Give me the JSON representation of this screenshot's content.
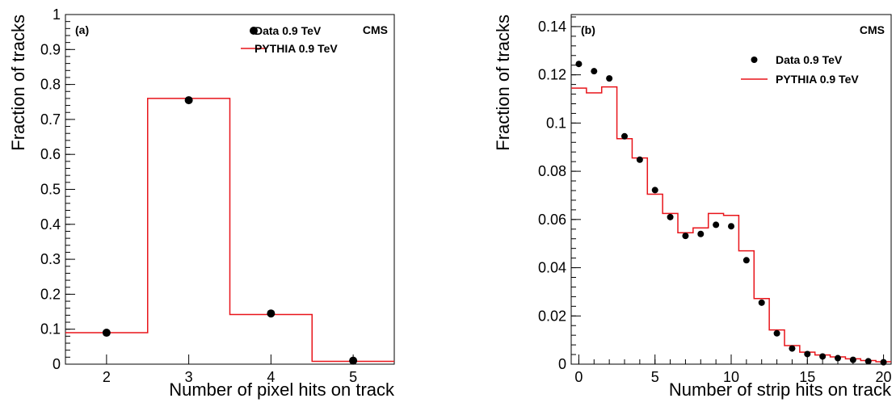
{
  "colors": {
    "data": "#000000",
    "mc": "#e8141a",
    "frame": "#000000"
  },
  "chart_data": [
    {
      "type": "step+scatter",
      "panel_label": "(a)",
      "experiment_label": "CMS",
      "xlabel": "Number of pixel hits on track",
      "ylabel": "Fraction of tracks",
      "xlim": [
        1.5,
        5.5
      ],
      "ylim": [
        0,
        1
      ],
      "xticks": [
        2,
        3,
        4,
        5
      ],
      "xtick_labels": [
        "2",
        "3",
        "4",
        "5"
      ],
      "yticks": [
        0,
        0.1,
        0.2,
        0.3,
        0.4,
        0.5,
        0.6,
        0.7,
        0.8,
        0.9,
        1
      ],
      "ytick_labels": [
        "0",
        "0.1",
        "0.2",
        "0.3",
        "0.4",
        "0.5",
        "0.6",
        "0.7",
        "0.8",
        "0.9",
        "1"
      ],
      "legend_position": "top-right",
      "series": [
        {
          "name": "Data 0.9 TeV",
          "kind": "markers",
          "x": [
            2,
            3,
            4,
            5
          ],
          "y": [
            0.09,
            0.755,
            0.145,
            0.01
          ]
        },
        {
          "name": "PYTHIA 0.9 TeV",
          "kind": "step",
          "x": [
            2,
            3,
            4,
            5
          ],
          "y": [
            0.09,
            0.76,
            0.142,
            0.008
          ]
        }
      ]
    },
    {
      "type": "step+scatter",
      "panel_label": "(b)",
      "experiment_label": "CMS",
      "xlabel": "Number of strip hits on track",
      "ylabel": "Fraction of tracks",
      "xlim": [
        -0.5,
        20.5
      ],
      "ylim": [
        0,
        0.145
      ],
      "xticks": [
        0,
        5,
        10,
        15,
        20
      ],
      "xtick_labels": [
        "0",
        "5",
        "10",
        "15",
        "20"
      ],
      "yticks": [
        0,
        0.02,
        0.04,
        0.06,
        0.08,
        0.1,
        0.12,
        0.14
      ],
      "ytick_labels": [
        "0",
        "0.02",
        "0.04",
        "0.06",
        "0.08",
        "0.1",
        "0.12",
        "0.14"
      ],
      "legend_position": "top-right",
      "series": [
        {
          "name": "Data 0.9 TeV",
          "kind": "markers",
          "x": [
            0,
            1,
            2,
            3,
            4,
            5,
            6,
            7,
            8,
            9,
            10,
            11,
            12,
            13,
            14,
            15,
            16,
            17,
            18,
            19,
            20
          ],
          "y": [
            0.1245,
            0.1215,
            0.1185,
            0.0945,
            0.0848,
            0.0722,
            0.061,
            0.0532,
            0.054,
            0.0578,
            0.0572,
            0.0431,
            0.0255,
            0.0128,
            0.0065,
            0.0042,
            0.0032,
            0.0025,
            0.0018,
            0.0012,
            0.0008
          ]
        },
        {
          "name": "PYTHIA 0.9 TeV",
          "kind": "step",
          "x": [
            0,
            1,
            2,
            3,
            4,
            5,
            6,
            7,
            8,
            9,
            10,
            11,
            12,
            13,
            14,
            15,
            16,
            17,
            18,
            19,
            20
          ],
          "y": [
            0.1145,
            0.1125,
            0.115,
            0.0935,
            0.0855,
            0.0705,
            0.0625,
            0.0545,
            0.0565,
            0.0625,
            0.0617,
            0.047,
            0.0272,
            0.0142,
            0.0077,
            0.005,
            0.0038,
            0.003,
            0.0022,
            0.0015,
            0.001
          ]
        }
      ]
    }
  ]
}
